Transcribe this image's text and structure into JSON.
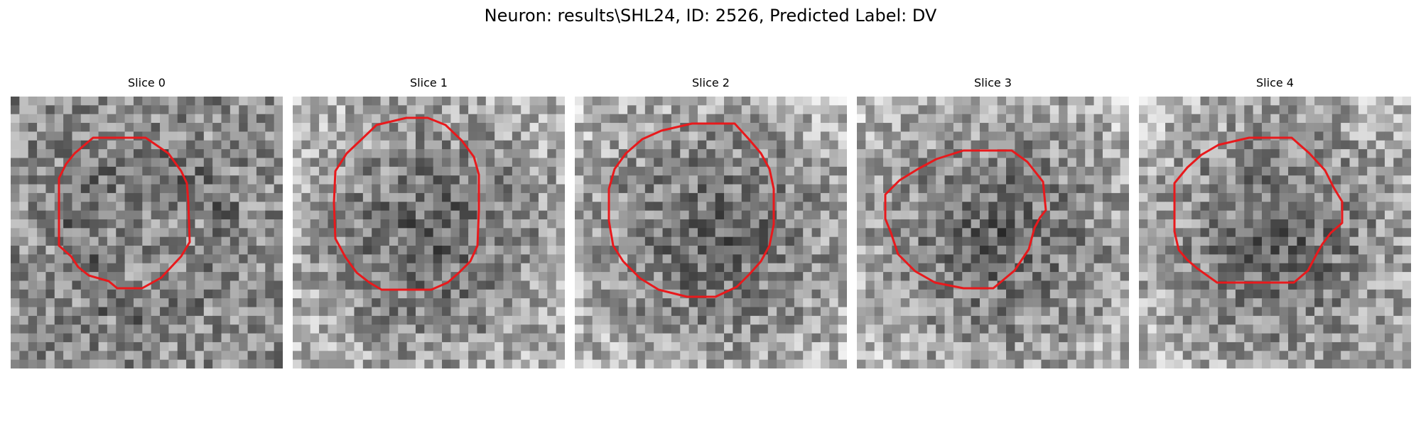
{
  "figure": {
    "title": "Neuron: results\\SHL24, ID: 2526, Predicted Label: DV"
  },
  "style": {
    "contour_color": "#e8191c"
  },
  "panels": [
    {
      "title": "Slice 0",
      "seed": 11,
      "dark_center": false
    },
    {
      "title": "Slice 1",
      "seed": 23,
      "dark_center": true
    },
    {
      "title": "Slice 2",
      "seed": 37,
      "dark_center": true
    },
    {
      "title": "Slice 3",
      "seed": 41,
      "dark_center": true
    },
    {
      "title": "Slice 4",
      "seed": 53,
      "dark_center": true
    }
  ]
}
